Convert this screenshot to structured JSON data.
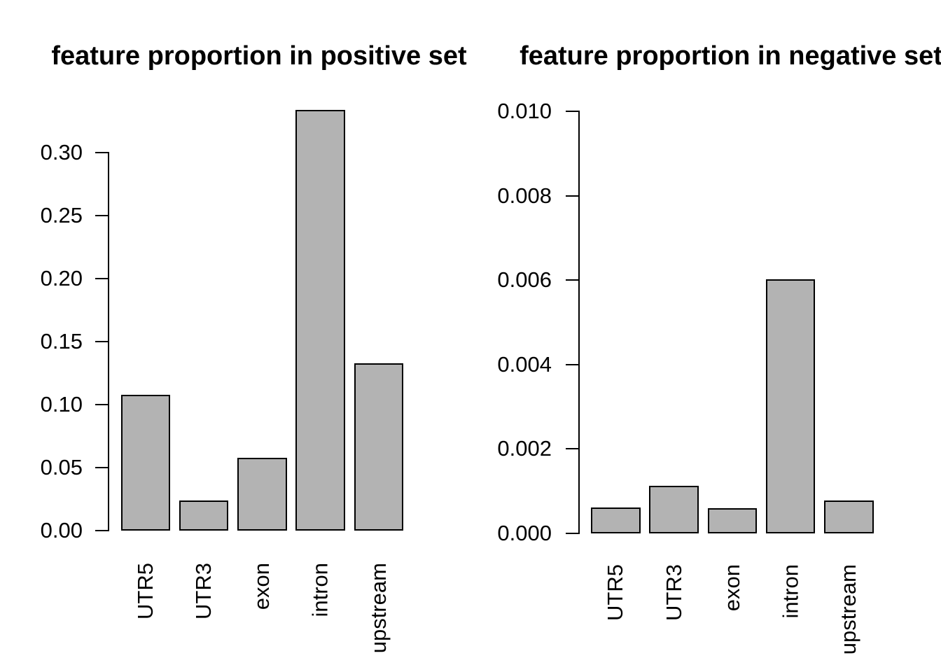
{
  "figure": {
    "background": "#ffffff",
    "text_color": "#000000",
    "axis_color": "#000000"
  },
  "chart_data": [
    {
      "type": "bar",
      "title": "feature proportion in positive set",
      "categories": [
        "UTR5",
        "UTR3",
        "exon",
        "intron",
        "upstream"
      ],
      "values": [
        0.108,
        0.024,
        0.058,
        0.334,
        0.133
      ],
      "xlabel": "",
      "ylabel": "",
      "ylim": [
        0,
        0.334
      ],
      "yticks": {
        "labels": [
          "0.00",
          "0.05",
          "0.10",
          "0.15",
          "0.20",
          "0.25",
          "0.30"
        ],
        "values": [
          0,
          0.05,
          0.1,
          0.15,
          0.2,
          0.25,
          0.3
        ]
      },
      "grid": false,
      "legend": false,
      "bar_fill": "#b3b3b3",
      "bar_stroke": "#000000",
      "x_label_rotation_deg": 90
    },
    {
      "type": "bar",
      "title": "feature proportion in negative set",
      "categories": [
        "UTR5",
        "UTR3",
        "exon",
        "intron",
        "upstream"
      ],
      "values": [
        0.00062,
        0.00113,
        0.0006,
        0.00602,
        0.00078
      ],
      "xlabel": "",
      "ylabel": "",
      "ylim": [
        0,
        0.01
      ],
      "yticks": {
        "labels": [
          "0.000",
          "0.002",
          "0.004",
          "0.006",
          "0.008",
          "0.010"
        ],
        "values": [
          0,
          0.002,
          0.004,
          0.006,
          0.008,
          0.01
        ]
      },
      "grid": false,
      "legend": false,
      "bar_fill": "#b3b3b3",
      "bar_stroke": "#000000",
      "x_label_rotation_deg": 90
    }
  ]
}
